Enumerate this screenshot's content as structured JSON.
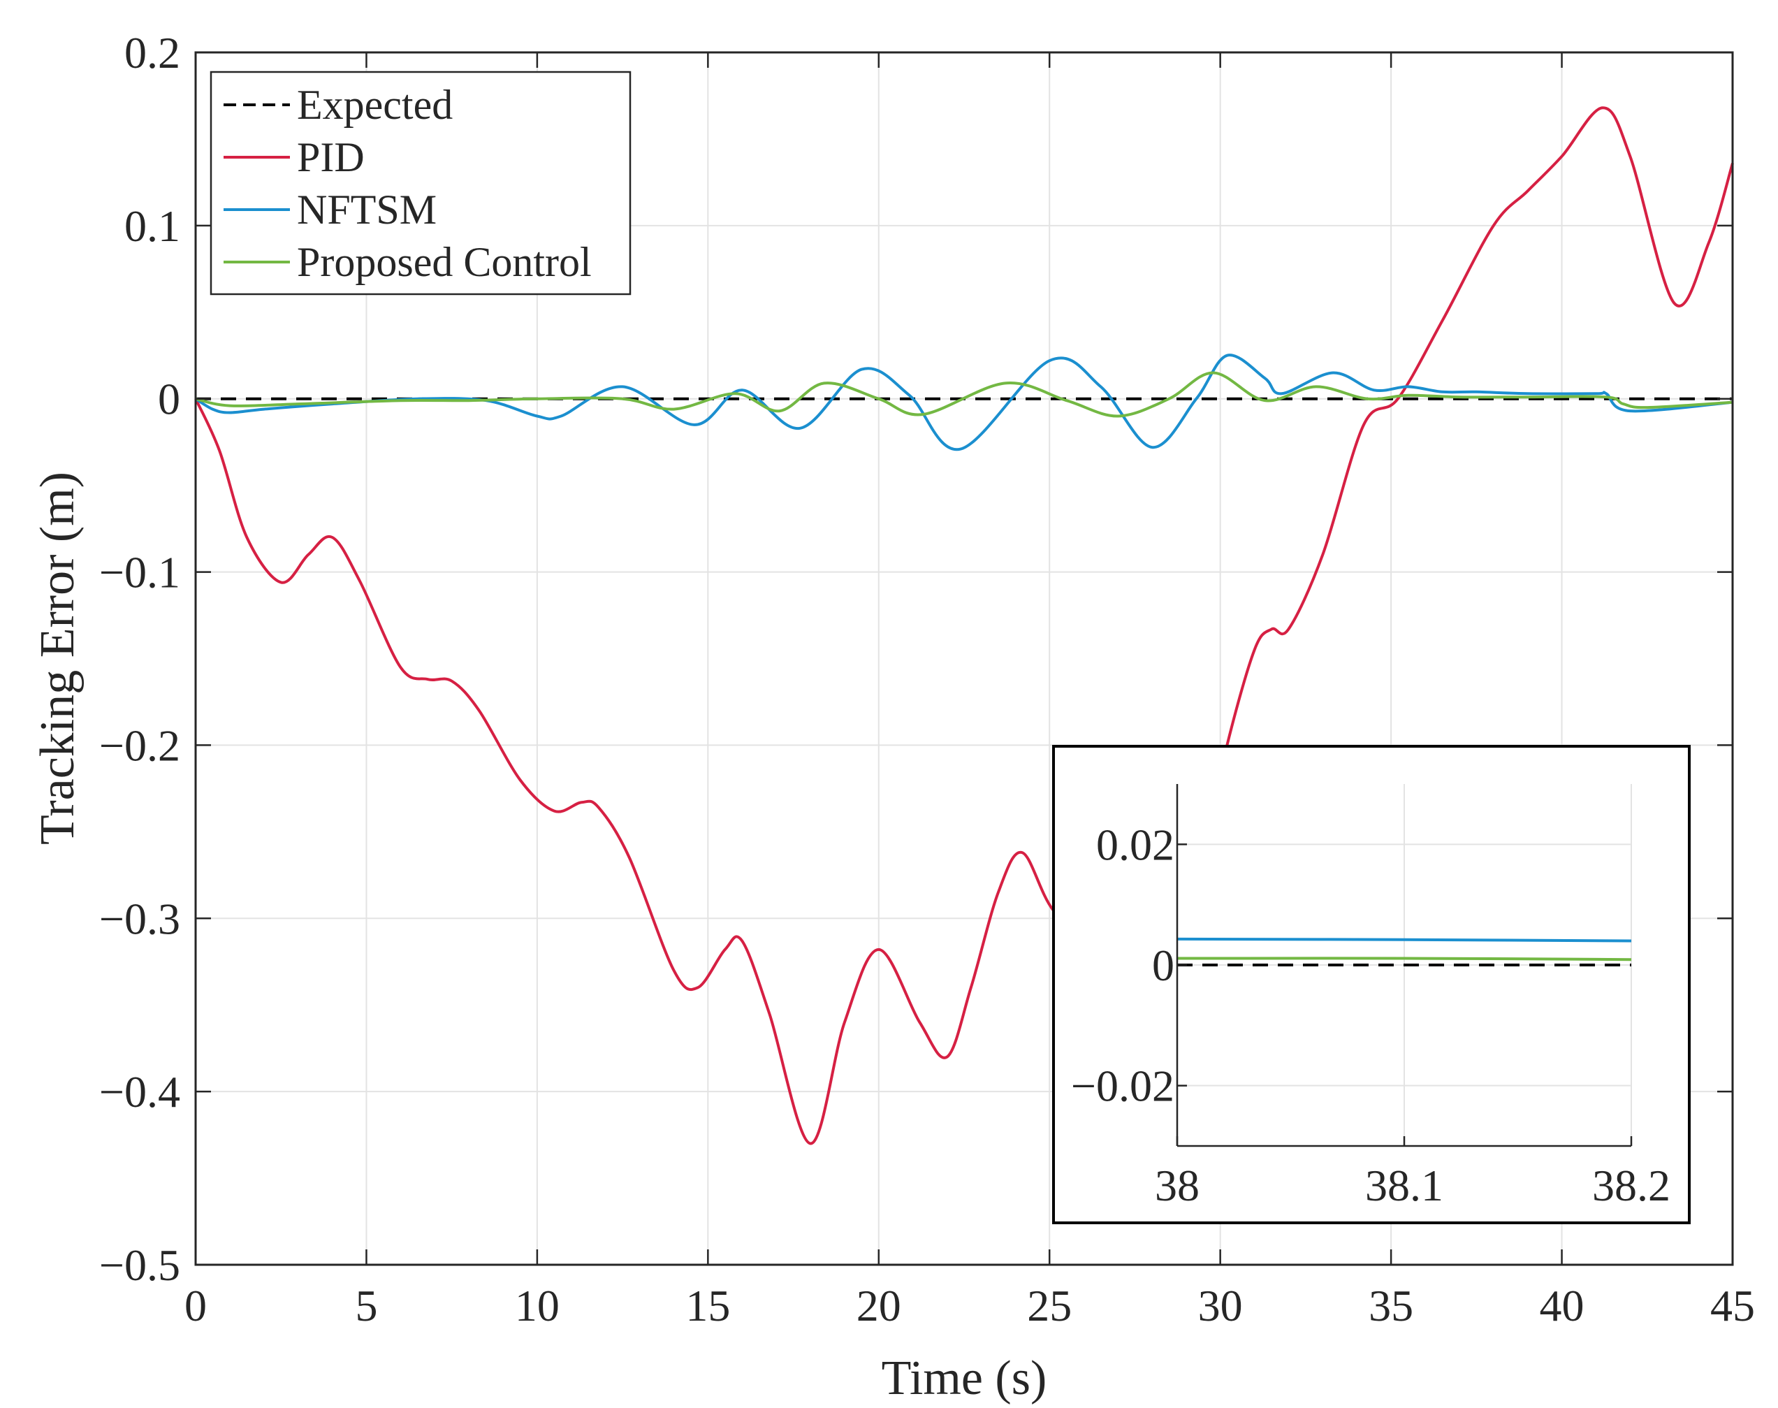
{
  "chart_data": [
    {
      "type": "line",
      "title": "",
      "xlabel": "Time (s)",
      "ylabel": "Tracking Error (m)",
      "xlim": [
        0,
        45
      ],
      "ylim": [
        -0.5,
        0.2
      ],
      "xticks": [
        0,
        5,
        10,
        15,
        20,
        25,
        30,
        35,
        40,
        45
      ],
      "xtick_labels": [
        "0",
        "5",
        "10",
        "15",
        "20",
        "25",
        "30",
        "35",
        "40",
        "45"
      ],
      "yticks": [
        -0.5,
        -0.4,
        -0.3,
        -0.2,
        -0.1,
        0,
        0.1,
        0.2
      ],
      "ytick_labels": [
        "−0.5",
        "−0.4",
        "−0.3",
        "−0.2",
        "−0.1",
        "0",
        "0.1",
        "0.2"
      ],
      "grid": true,
      "legend_position": "top-left",
      "series": [
        {
          "name": "Expected",
          "color": "#000000",
          "dash": "dashed",
          "x": [
            0,
            45
          ],
          "y": [
            0,
            0
          ]
        },
        {
          "name": "PID",
          "color": "#d62043",
          "dash": "solid",
          "x": [
            0,
            0.7,
            1.5,
            2.5,
            3.3,
            4,
            4.8,
            6,
            6.8,
            7.5,
            8.3,
            9.5,
            10.5,
            11.3,
            11.8,
            12.7,
            14,
            14.7,
            15.5,
            16,
            16.8,
            18,
            19,
            20,
            21.2,
            22,
            22.7,
            23.5,
            24.2,
            25.1,
            26.5,
            28,
            29.5,
            30.2,
            31,
            31.5,
            32,
            33,
            34.2,
            35.2,
            36.5,
            38,
            39,
            40,
            41.2,
            42,
            43.3,
            44.3,
            45
          ],
          "y": [
            0,
            -0.03,
            -0.08,
            -0.106,
            -0.09,
            -0.08,
            -0.105,
            -0.155,
            -0.162,
            -0.163,
            -0.18,
            -0.22,
            -0.238,
            -0.233,
            -0.236,
            -0.265,
            -0.33,
            -0.34,
            -0.318,
            -0.313,
            -0.355,
            -0.43,
            -0.36,
            -0.318,
            -0.36,
            -0.38,
            -0.34,
            -0.285,
            -0.262,
            -0.295,
            -0.32,
            -0.3,
            -0.265,
            -0.2,
            -0.145,
            -0.133,
            -0.133,
            -0.09,
            -0.015,
            0,
            0.045,
            0.1,
            0.12,
            0.14,
            0.168,
            0.14,
            0.055,
            0.09,
            0.136
          ]
        },
        {
          "name": "NFTSM",
          "color": "#1b8fcf",
          "dash": "solid",
          "x": [
            0,
            0.5,
            1,
            2,
            4,
            6.5,
            8.5,
            10,
            10.7,
            12.5,
            14.6,
            16,
            17.7,
            19.5,
            20.9,
            22.4,
            25,
            26.5,
            28,
            29.3,
            30.2,
            31.3,
            31.8,
            33.3,
            34.5,
            35.5,
            36.5,
            37.5,
            39,
            41,
            41.3,
            42,
            45
          ],
          "y": [
            0,
            -0.006,
            -0.008,
            -0.006,
            -0.003,
            0,
            -0.001,
            -0.01,
            -0.01,
            0.007,
            -0.015,
            0.005,
            -0.017,
            0.017,
            0.002,
            -0.029,
            0.022,
            0.007,
            -0.028,
            0,
            0.025,
            0.012,
            0.003,
            0.015,
            0.005,
            0.007,
            0.004,
            0.004,
            0.003,
            0.003,
            0.003,
            -0.007,
            -0.002
          ]
        },
        {
          "name": "Proposed Control",
          "color": "#73b843",
          "dash": "solid",
          "x": [
            0,
            1,
            3,
            6,
            8,
            10,
            12.5,
            14,
            15.8,
            17.1,
            18.4,
            20,
            21.3,
            23.7,
            25.5,
            27,
            28.5,
            29.8,
            31.3,
            32.8,
            34.3,
            35.5,
            37,
            39,
            41.3,
            41.8,
            42.5,
            45
          ],
          "y": [
            0,
            -0.004,
            -0.003,
            -0.001,
            -0.001,
            0,
            0,
            -0.006,
            0.003,
            -0.007,
            0.009,
            0,
            -0.009,
            0.009,
            -0.001,
            -0.01,
            0,
            0.015,
            -0.001,
            0.007,
            0,
            0.002,
            0.001,
            0.001,
            0.001,
            -0.003,
            -0.005,
            -0.002
          ]
        }
      ]
    },
    {
      "type": "line",
      "title": "",
      "xlabel": "",
      "ylabel": "",
      "xlim": [
        38,
        38.2
      ],
      "ylim": [
        -0.03,
        0.03
      ],
      "xticks": [
        38,
        38.1,
        38.2
      ],
      "xtick_labels": [
        "38",
        "38.1",
        "38.2"
      ],
      "yticks": [
        -0.02,
        0,
        0.02
      ],
      "ytick_labels": [
        "−0.02",
        "0",
        "0.02"
      ],
      "grid": true,
      "series": [
        {
          "name": "Expected",
          "color": "#000000",
          "dash": "dashed",
          "x": [
            38,
            38.2
          ],
          "y": [
            0,
            0
          ]
        },
        {
          "name": "NFTSM",
          "color": "#1b8fcf",
          "dash": "solid",
          "x": [
            38,
            38.1,
            38.2
          ],
          "y": [
            0.0043,
            0.0042,
            0.004
          ]
        },
        {
          "name": "Proposed Control",
          "color": "#73b843",
          "dash": "solid",
          "x": [
            38,
            38.1,
            38.2
          ],
          "y": [
            0.0011,
            0.0011,
            0.0009
          ]
        }
      ]
    }
  ]
}
